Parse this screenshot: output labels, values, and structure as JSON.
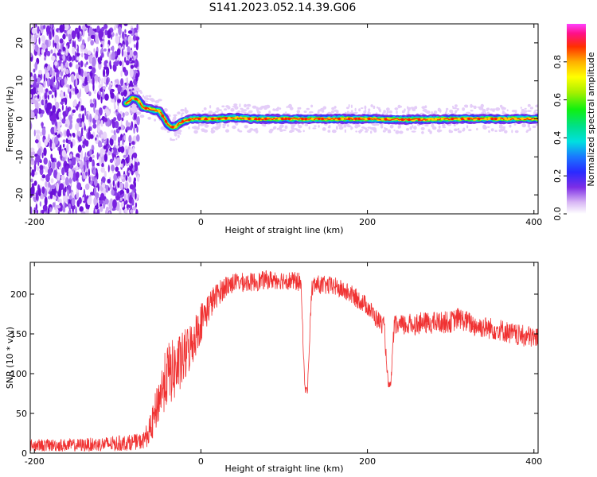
{
  "figure_title": "S141.2023.052.14.39.G06",
  "colors": {
    "snr_line": "#f03232",
    "frame": "#000000"
  },
  "chart_data": [
    {
      "type": "heatmap",
      "xlabel": "Height of straight line (km)",
      "ylabel": "Frequency (Hz)",
      "xlim": [
        -205,
        405
      ],
      "ylim": [
        -25,
        25
      ],
      "x_ticks": [
        -200,
        0,
        200,
        400
      ],
      "y_ticks": [
        -20,
        -10,
        0,
        10,
        20
      ],
      "ridge": {
        "x": [
          -90,
          -82,
          -75,
          -70,
          -60,
          -50,
          -45,
          -40,
          -35,
          -30,
          -25,
          -20,
          -10,
          0,
          20,
          40,
          60,
          80,
          100,
          150,
          200,
          250,
          300,
          350,
          405
        ],
        "y": [
          4,
          5.5,
          5,
          3,
          2.5,
          2,
          0.5,
          -1.5,
          -2.2,
          -2,
          -1,
          -0.5,
          0,
          0,
          0,
          0.3,
          0,
          0,
          0,
          0,
          0,
          -0.2,
          0,
          0,
          0
        ]
      },
      "noise_region_x": [
        -205,
        -85
      ],
      "colorbar": {
        "label": "Normalized spectral amplitude",
        "ticks": [
          0.0,
          0.2,
          0.4,
          0.6,
          0.8
        ],
        "range": [
          0,
          1
        ],
        "colormap": "gist_ncar_like"
      }
    },
    {
      "type": "line",
      "xlabel": "Height of straight line (km)",
      "ylabel": "SNR (10 * v/v)",
      "xlim": [
        -205,
        405
      ],
      "ylim": [
        0,
        240
      ],
      "x_ticks": [
        -200,
        0,
        200,
        400
      ],
      "y_ticks": [
        0,
        50,
        100,
        150,
        200
      ],
      "series": [
        {
          "envelope_x": [
            -205,
            -150,
            -100,
            -70,
            -60,
            -50,
            -40,
            -30,
            -20,
            -10,
            0,
            10,
            20,
            30,
            40,
            60,
            80,
            100,
            120,
            125,
            128,
            133,
            136,
            140,
            160,
            180,
            200,
            210,
            220,
            225,
            228,
            232,
            235,
            240,
            260,
            300,
            310,
            330,
            360,
            380,
            405
          ],
          "envelope_y": [
            10,
            10,
            12,
            15,
            30,
            70,
            100,
            105,
            120,
            140,
            165,
            185,
            200,
            210,
            215,
            215,
            218,
            218,
            215,
            80,
            80,
            205,
            212,
            212,
            210,
            200,
            185,
            170,
            160,
            85,
            85,
            160,
            160,
            160,
            163,
            165,
            170,
            160,
            155,
            148,
            145
          ],
          "noise_amplitude": [
            8,
            8,
            10,
            10,
            20,
            30,
            40,
            40,
            35,
            30,
            25,
            20,
            15,
            15,
            12,
            12,
            12,
            12,
            12,
            5,
            5,
            12,
            12,
            12,
            12,
            12,
            12,
            12,
            12,
            5,
            5,
            12,
            14,
            14,
            14,
            14,
            14,
            14,
            14,
            14,
            14
          ]
        }
      ]
    }
  ]
}
